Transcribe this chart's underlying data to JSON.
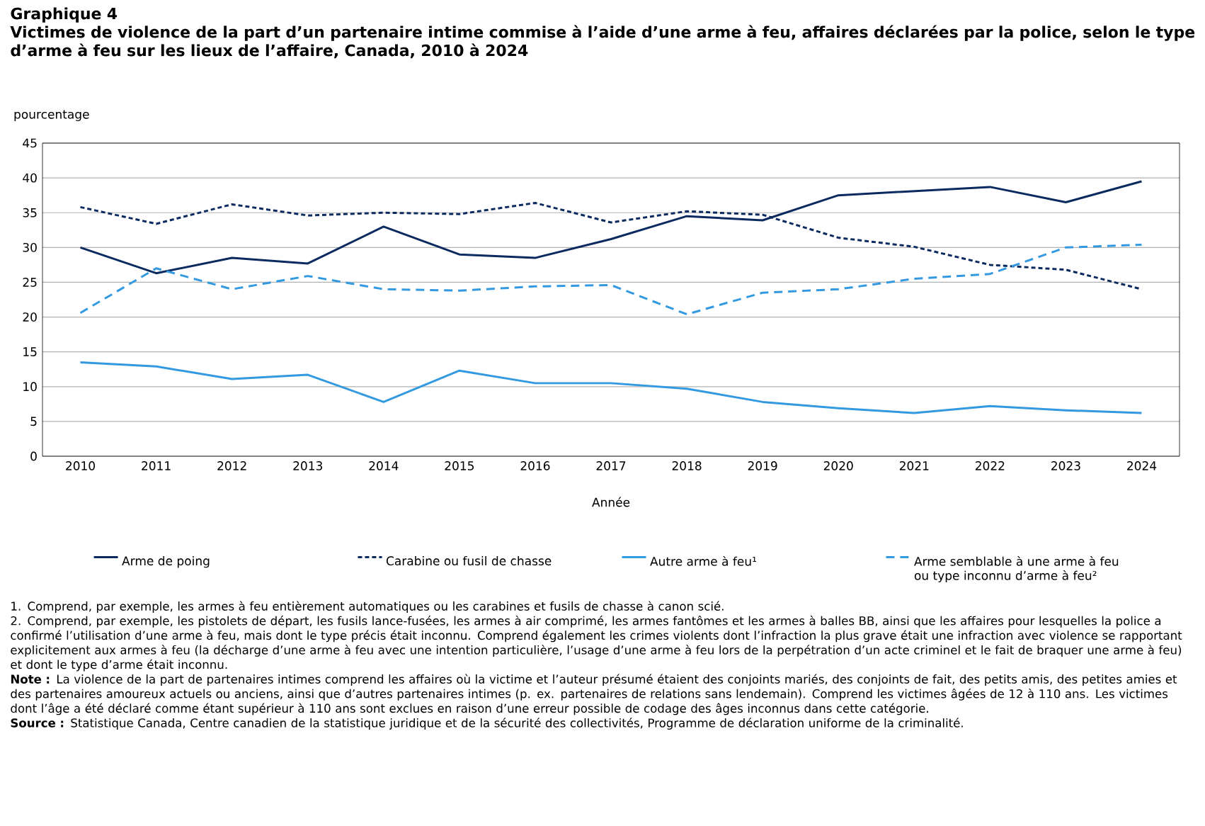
{
  "chart_data": {
    "type": "line",
    "title": "Graphique 4",
    "subtitle": "Victimes de violence de la part d’un partenaire intime commise à l’aide d’une arme à feu, affaires déclarées par la police, selon le type d’arme à feu sur les lieux de l’affaire, Canada, 2010 à 2024",
    "ylabel": "pourcentage",
    "xlabel": "Année",
    "categories": [
      "2010",
      "2011",
      "2012",
      "2013",
      "2014",
      "2015",
      "2016",
      "2017",
      "2018",
      "2019",
      "2020",
      "2021",
      "2022",
      "2023",
      "2024"
    ],
    "series": [
      {
        "name": "Arme de poing",
        "color": "#0b2a5f",
        "line_style": "solid",
        "values": [
          30,
          26.3,
          28.5,
          27.7,
          33,
          29,
          28.5,
          31.2,
          34.5,
          33.9,
          37.5,
          38.1,
          38.7,
          36.5,
          39.5
        ]
      },
      {
        "name": "Carabine ou fusil de chasse",
        "color": "#0b2a5f",
        "line_style": "dotted",
        "values": [
          35.8,
          33.4,
          36.2,
          34.6,
          35,
          34.8,
          36.4,
          33.6,
          35.2,
          34.7,
          31.4,
          30.1,
          27.5,
          26.8,
          24
        ]
      },
      {
        "name": "Autre arme à feu¹",
        "color": "#3399e0",
        "line_style": "solid",
        "values": [
          13.5,
          12.9,
          11.1,
          11.7,
          7.8,
          12.3,
          10.5,
          10.5,
          9.7,
          7.8,
          6.9,
          6.2,
          7.2,
          6.6,
          6.2
        ]
      },
      {
        "name": "Arme semblable à une arme à feu ou type inconnu d’arme à feu²",
        "color": "#3399e0",
        "line_style": "dashed",
        "values": [
          20.6,
          27,
          24,
          25.9,
          24,
          23.8,
          24.4,
          24.6,
          20.4,
          23.5,
          24,
          25.5,
          26.2,
          30,
          30.4
        ]
      }
    ],
    "ylim": [
      0,
      45
    ],
    "yticks": [
      0,
      5,
      10,
      15,
      20,
      25,
      30,
      35,
      40,
      45
    ],
    "grid": "y",
    "legend": "bottom",
    "annotations": [
      "1. Comprend, par exemple, les armes à feu entièrement automatiques ou les carabines et fusils de chasse à canon scié.",
      "2. Comprend, par exemple, les pistolets de départ, les fusils lance-fusées, les armes à air comprimé, les armes fantômes et les armes à balles BB, ainsi que les affaires pour lesquelles la police a confirmé l’utilisation d’une arme à feu, mais dont le type précis était inconnu. Comprend également les crimes violents dont l’infraction la plus grave était une infraction avec violence se rapportant explicitement aux armes à feu (la décharge d’une arme à feu avec une intention particulière, l’usage d’une arme à feu lors de la perpétration d’un acte criminel et le fait de braquer une arme à feu) et dont le type d’arme était inconnu.",
      "**Note :** La violence de la part de partenaires intimes comprend les affaires où la victime et l’auteur présumé étaient des conjoints mariés, des conjoints de fait, des petits amis, des petites amies et des partenaires amoureux actuels ou anciens, ainsi que d’autres partenaires intimes (p. ex. partenaires de relations sans lendemain). Comprend les victimes âgées de 12 à 110 ans. Les victimes dont l’âge a été déclaré comme étant supérieur à 110 ans sont exclues en raison d’une erreur possible de codage des âges inconnus dans cette catégorie.",
      "**Source :** Statistique Canada, Centre canadien de la statistique juridique et de la sécurité des collectivités, Programme de déclaration uniforme de la criminalité."
    ]
  }
}
